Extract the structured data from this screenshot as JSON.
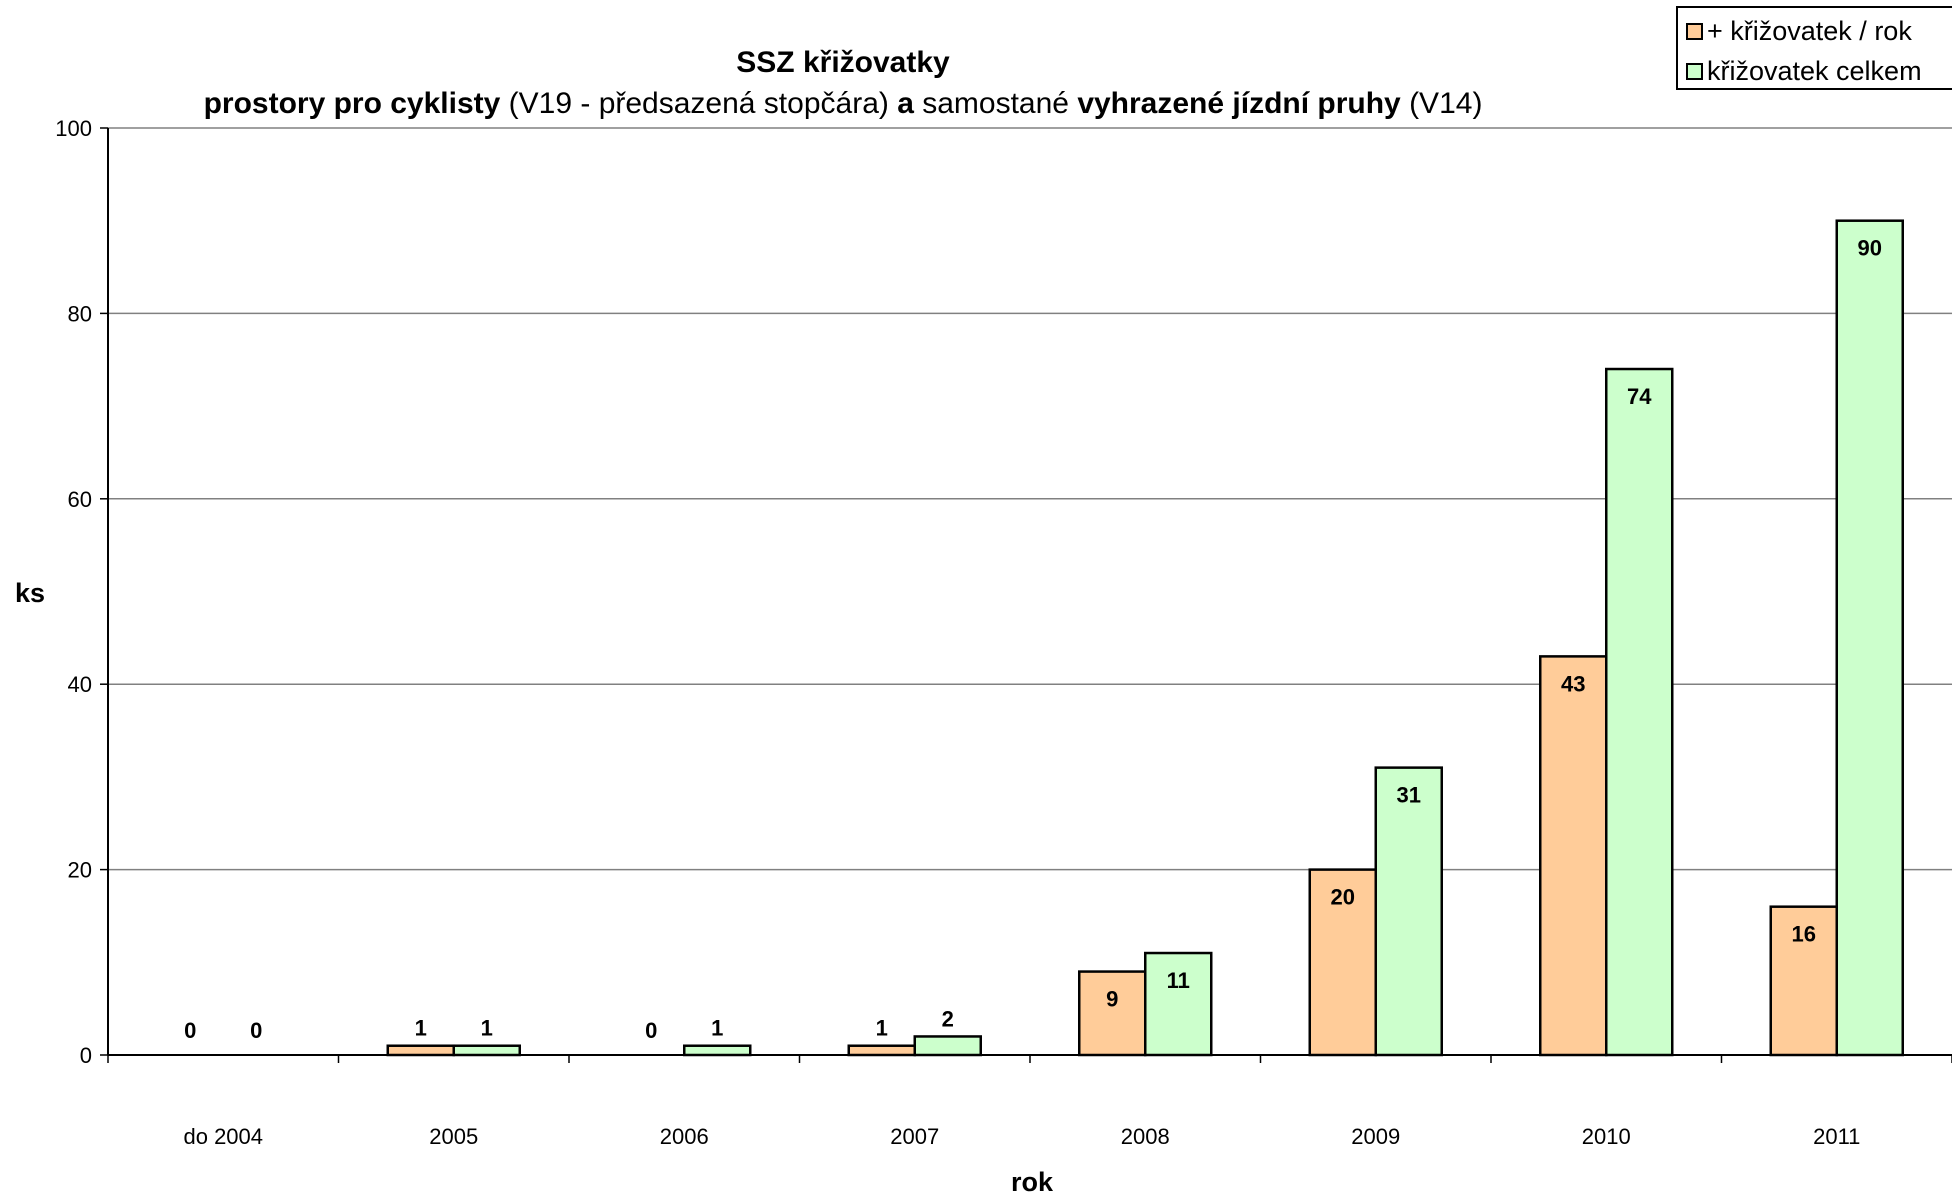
{
  "chart_data": {
    "type": "bar",
    "title": "SSZ křižovatky",
    "subtitle_parts": [
      {
        "text": "prostory pro cyklisty",
        "bold": true
      },
      {
        "text": " (V19 - předsazená stopčára) ",
        "bold": false
      },
      {
        "text": "a",
        "bold": true
      },
      {
        "text": " samostané ",
        "bold": false
      },
      {
        "text": "vyhrazené jízdní pruhy",
        "bold": true
      },
      {
        "text": " (V14)",
        "bold": false
      }
    ],
    "xlabel": "rok",
    "ylabel": "ks",
    "ylim": [
      0,
      100
    ],
    "yticks": [
      0,
      20,
      40,
      60,
      80,
      100
    ],
    "grid": true,
    "legend_position": "top-right",
    "categories": [
      "do 2004",
      "2005",
      "2006",
      "2007",
      "2008",
      "2009",
      "2010",
      "2011"
    ],
    "series": [
      {
        "name": "+ křižovatek / rok",
        "color": "#FFCC99",
        "values": [
          0,
          1,
          0,
          1,
          9,
          20,
          43,
          16
        ]
      },
      {
        "name": "křižovatek celkem",
        "color": "#CCFFCC",
        "values": [
          0,
          1,
          1,
          2,
          11,
          31,
          74,
          90
        ]
      }
    ]
  }
}
